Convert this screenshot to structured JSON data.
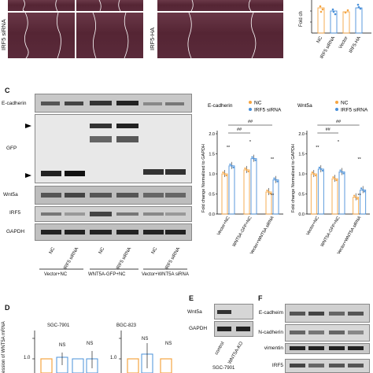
{
  "panel_a": {
    "row2_label_left": "IRF5 siRNA",
    "row2_label_right": "IRF5-HA"
  },
  "panel_b_chart": {
    "ylabel": "Fold ch",
    "categories": [
      "NC",
      "IRF5 siRNA",
      "Vector",
      "IRF5-HA"
    ],
    "ticks": [
      "0.0",
      "0.5",
      "1.0",
      "1.5"
    ]
  },
  "panel_c": {
    "letter": "C",
    "blot_labels": [
      "E-cadherin",
      "GFP",
      "Wnt5a",
      "IRF5",
      "GAPDH"
    ],
    "lane_labels": [
      "NC",
      "IRF5 siRNA",
      "NC",
      "IRF5 siRNA",
      "NC",
      "IRF5 siRNA"
    ],
    "group_labels": [
      "Vector+NC",
      "WNT5A-GFP+NC",
      "Vector+WNT5A siRNA"
    ]
  },
  "chart_data": [
    {
      "type": "bar",
      "title": "E-cadherin",
      "ylabel": "Fold change Normalized to GAPDH",
      "categories": [
        "Vector+NC",
        "WNT5A-GFP+NC",
        "Vector+WNT5A siRNA"
      ],
      "series": [
        {
          "name": "NC",
          "values": [
            1.0,
            1.1,
            0.55
          ]
        },
        {
          "name": "IRF5 siRNA",
          "values": [
            1.2,
            1.38,
            0.85
          ]
        }
      ],
      "ticks": [
        "0.0",
        "0.5",
        "1.0",
        "1.5",
        "2.0"
      ],
      "ylim": [
        0,
        2.0
      ],
      "sig": [
        "**",
        "*",
        "**",
        "**",
        "##",
        "##"
      ],
      "colors": {
        "NC": "#f5a542",
        "IRF5 siRNA": "#4a90d9"
      }
    },
    {
      "type": "bar",
      "title": "Wnt5a",
      "ylabel": "Fold change Normalized to GAPDH",
      "categories": [
        "Vector+NC",
        "WNT5A-GFP+NC",
        "Vector+WNT5A siRNA"
      ],
      "series": [
        {
          "name": "NC",
          "values": [
            1.0,
            0.88,
            0.42
          ]
        },
        {
          "name": "IRF5 siRNA",
          "values": [
            1.12,
            1.05,
            0.6
          ]
        }
      ],
      "ticks": [
        "0.0",
        "0.5",
        "1.0",
        "1.5",
        "2.0"
      ],
      "ylim": [
        0,
        2.0
      ],
      "sig": [
        "**",
        "*",
        "**",
        "**",
        "##",
        "##"
      ],
      "colors": {
        "NC": "#f5a542",
        "IRF5 siRNA": "#4a90d9"
      }
    }
  ],
  "panel_d": {
    "letter": "D",
    "ylabel": "ession of WNT5A mRNA",
    "charts": [
      {
        "title": "SGC-7901",
        "sig": [
          "NS",
          "NS"
        ],
        "tick": "1.0",
        "tick0": "0.5"
      },
      {
        "title": "BGC-823",
        "sig": [
          "NS",
          "NS"
        ],
        "tick": "1.0",
        "tick0": "0.5"
      }
    ]
  },
  "panel_e": {
    "letter": "E",
    "blot_labels": [
      "Wnt5a",
      "GAPDH"
    ],
    "lanes": [
      "control",
      "WNT5A-KO"
    ],
    "cell_line": "SGC-7901"
  },
  "panel_f": {
    "letter": "F",
    "blot_labels": [
      "E-cadheim",
      "N-cadherin",
      "vimentin",
      "IRF5"
    ]
  }
}
